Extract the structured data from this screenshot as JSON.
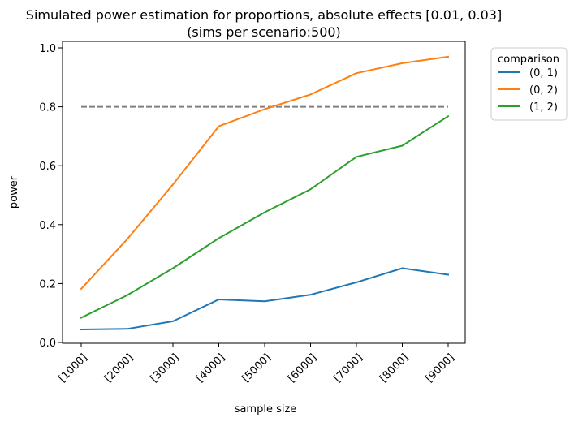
{
  "chart_data": {
    "type": "line",
    "title": "Simulated power estimation for proportions, absolute effects [0.01, 0.03]",
    "subtitle": "(sims per scenario:500)",
    "xlabel": "sample size",
    "ylabel": "power",
    "categories": [
      "[1000]",
      "[2000]",
      "[3000]",
      "[4000]",
      "[5000]",
      "[6000]",
      "[7000]",
      "[8000]",
      "[9000]"
    ],
    "ylim": [
      0.0,
      1.0
    ],
    "yticks": [
      "0.0",
      "0.2",
      "0.4",
      "0.6",
      "0.8",
      "1.0"
    ],
    "ytick_values": [
      0.0,
      0.2,
      0.4,
      0.6,
      0.8,
      1.0
    ],
    "grid": false,
    "legend": {
      "title": "comparison",
      "placement": "outside top-right"
    },
    "series": [
      {
        "name": "(0, 1)",
        "color": "#1f77b4",
        "values": [
          0.044,
          0.046,
          0.072,
          0.146,
          0.14,
          0.162,
          0.204,
          0.252,
          0.23
        ]
      },
      {
        "name": "(0, 2)",
        "color": "#ff7f0e",
        "values": [
          0.182,
          0.35,
          0.536,
          0.734,
          0.792,
          0.842,
          0.914,
          0.948,
          0.97
        ]
      },
      {
        "name": "(1, 2)",
        "color": "#2ca02c",
        "values": [
          0.084,
          0.16,
          0.252,
          0.354,
          0.442,
          0.52,
          0.63,
          0.668,
          0.768
        ]
      }
    ],
    "reference_line": {
      "value": 0.8,
      "color": "#808080",
      "style": "dashed"
    }
  }
}
